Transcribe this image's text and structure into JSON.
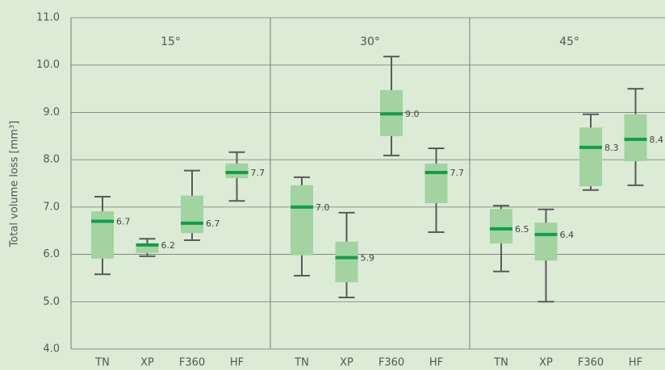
{
  "chart_data": {
    "type": "box",
    "ylabel": "Total volume loss [mm³]",
    "ylim": [
      4,
      11
    ],
    "yticks": [
      {
        "value": 4,
        "label": "4.0"
      },
      {
        "value": 5,
        "label": "5.0"
      },
      {
        "value": 6,
        "label": "6.0"
      },
      {
        "value": 7,
        "label": "7.0"
      },
      {
        "value": 8,
        "label": "8.0"
      },
      {
        "value": 9,
        "label": "9.0"
      },
      {
        "value": 10,
        "label": "10.0"
      },
      {
        "value": 11,
        "label": "11.0"
      }
    ],
    "grid": true,
    "color": "#a2d3a0",
    "median_color": "#119e4b",
    "whisker_color": "#5a5a5a",
    "panels": [
      {
        "title": "15°",
        "categories": [
          "TN",
          "XP",
          "F360",
          "HF"
        ],
        "whisker_low": [
          5.58,
          5.96,
          6.3,
          7.13
        ],
        "q1": [
          5.91,
          6.03,
          6.45,
          7.61
        ],
        "median": [
          6.7,
          6.2,
          6.66,
          7.73
        ],
        "q3": [
          6.91,
          6.23,
          7.24,
          7.92
        ],
        "whisker_high": [
          7.22,
          6.33,
          7.77,
          8.16
        ],
        "value_labels": [
          "6.7",
          "6.2",
          "6.7",
          "7.7"
        ]
      },
      {
        "title": "30°",
        "categories": [
          "TN",
          "XP",
          "F360",
          "HF"
        ],
        "whisker_low": [
          5.55,
          5.09,
          8.09,
          6.47
        ],
        "q1": [
          5.98,
          5.41,
          8.5,
          7.08
        ],
        "median": [
          7.0,
          5.93,
          8.97,
          7.73
        ],
        "q3": [
          7.46,
          6.27,
          9.47,
          7.92
        ],
        "whisker_high": [
          7.63,
          6.88,
          10.18,
          8.24
        ],
        "value_labels": [
          "7.0",
          "5.9",
          "9.0",
          "7.7"
        ]
      },
      {
        "title": "45°",
        "categories": [
          "TN",
          "XP",
          "F360",
          "HF"
        ],
        "whisker_low": [
          5.64,
          5.0,
          7.36,
          7.46
        ],
        "q1": [
          6.23,
          5.87,
          7.44,
          7.97
        ],
        "median": [
          6.54,
          6.42,
          8.26,
          8.43
        ],
        "q3": [
          6.96,
          6.67,
          8.68,
          8.96
        ],
        "whisker_high": [
          7.03,
          6.95,
          8.96,
          9.5
        ],
        "value_labels": [
          "6.5",
          "6.4",
          "8.3",
          "8.4"
        ]
      }
    ]
  }
}
